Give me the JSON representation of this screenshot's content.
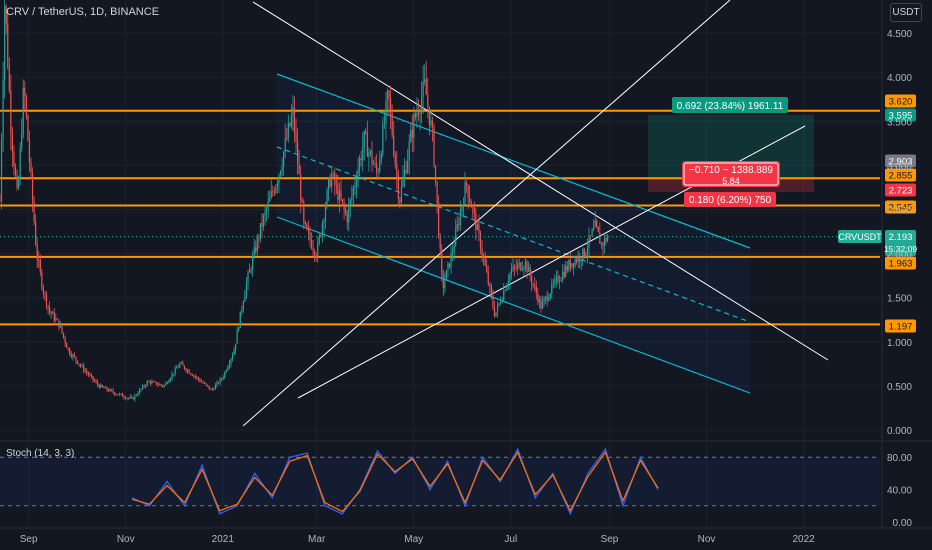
{
  "header": {
    "title": "CRV / TetherUS, 1D, BINANCE",
    "currency_button": "USDT"
  },
  "stoch_panel": {
    "title": "Stoch (14, 3, 3)",
    "y_ticks": [
      "80.00",
      "40.00",
      "0.00"
    ]
  },
  "price_axis": {
    "ticks": [
      "4.500",
      "4.000",
      "3.500",
      "3.000",
      "2.500",
      "2.000",
      "1.500",
      "1.000",
      "0.500",
      "0.000"
    ]
  },
  "time_axis": {
    "ticks": [
      "Sep",
      "Nov",
      "2021",
      "Mar",
      "May",
      "Jul",
      "Sep",
      "Nov",
      "2022"
    ]
  },
  "price_tags": [
    {
      "text": "3.620",
      "color": "#ff9800"
    },
    {
      "text": "3.595",
      "color": "#089981"
    },
    {
      "text": "2.903",
      "color": "#787b86"
    },
    {
      "text": "2.855",
      "color": "#ff9800"
    },
    {
      "text": "2.723",
      "color": "#f23645"
    },
    {
      "text": "2.545",
      "color": "#ff9800"
    },
    {
      "text": "1.963",
      "color": "#ff9800"
    },
    {
      "text": "1.197",
      "color": "#ff9800"
    }
  ],
  "current_price": {
    "symbol": "CRVUSDT",
    "price": "2.193",
    "countdown": "15:32:09",
    "color": "#22ab94"
  },
  "position_labels": {
    "target": "0.692 (23.84%) 1961.11",
    "tooltip_line1": "−0.710 ~ 1388.889",
    "tooltip_line2": "5.84",
    "stop": "0.180 (6.20%) 750"
  },
  "colors": {
    "background": "#131722",
    "bull": "#26a69a",
    "bear": "#ef5350",
    "horizontal_levels": "#ff9800",
    "channel": "#00bcd4",
    "trendlines": "#ffffff",
    "stoch_k": "#2962ff",
    "stoch_d": "#ff6d00"
  },
  "chart_data": [
    {
      "type": "candlestick",
      "title": "CRV / TetherUS, 1D, BINANCE",
      "ylim": [
        0,
        4.9
      ],
      "x_range": [
        "2020-08-14",
        "2022-02-18"
      ],
      "current_price": 2.193,
      "horizontal_levels": [
        3.62,
        2.855,
        2.545,
        1.963,
        1.197
      ],
      "close_path": [
        [
          "2020-08-14",
          2.6
        ],
        [
          "2020-08-17",
          4.9
        ],
        [
          "2020-08-21",
          3.4
        ],
        [
          "2020-08-25",
          2.6
        ],
        [
          "2020-08-29",
          3.9
        ],
        [
          "2020-09-03",
          2.7
        ],
        [
          "2020-09-06",
          2.0
        ],
        [
          "2020-09-10",
          1.6
        ],
        [
          "2020-09-14",
          1.35
        ],
        [
          "2020-09-20",
          1.2
        ],
        [
          "2020-09-26",
          0.9
        ],
        [
          "2020-10-05",
          0.7
        ],
        [
          "2020-10-15",
          0.5
        ],
        [
          "2020-10-25",
          0.42
        ],
        [
          "2020-11-05",
          0.35
        ],
        [
          "2020-11-15",
          0.55
        ],
        [
          "2020-11-25",
          0.5
        ],
        [
          "2020-12-05",
          0.75
        ],
        [
          "2020-12-15",
          0.6
        ],
        [
          "2020-12-25",
          0.45
        ],
        [
          "2021-01-01",
          0.6
        ],
        [
          "2021-01-08",
          0.9
        ],
        [
          "2021-01-15",
          1.6
        ],
        [
          "2021-01-25",
          2.3
        ],
        [
          "2021-02-05",
          2.9
        ],
        [
          "2021-02-14",
          3.6
        ],
        [
          "2021-02-21",
          2.3
        ],
        [
          "2021-03-01",
          2.0
        ],
        [
          "2021-03-10",
          2.9
        ],
        [
          "2021-03-20",
          2.4
        ],
        [
          "2021-03-31",
          3.3
        ],
        [
          "2021-04-08",
          2.9
        ],
        [
          "2021-04-15",
          3.8
        ],
        [
          "2021-04-22",
          2.6
        ],
        [
          "2021-05-01",
          3.5
        ],
        [
          "2021-05-08",
          3.9
        ],
        [
          "2021-05-13",
          3.3
        ],
        [
          "2021-05-19",
          1.6
        ],
        [
          "2021-05-25",
          2.0
        ],
        [
          "2021-06-03",
          2.8
        ],
        [
          "2021-06-12",
          2.1
        ],
        [
          "2021-06-21",
          1.3
        ],
        [
          "2021-07-01",
          1.8
        ],
        [
          "2021-07-10",
          1.9
        ],
        [
          "2021-07-20",
          1.4
        ],
        [
          "2021-07-30",
          1.7
        ],
        [
          "2021-08-08",
          1.9
        ],
        [
          "2021-08-16",
          2.0
        ],
        [
          "2021-08-23",
          2.3
        ],
        [
          "2021-08-27",
          2.1
        ],
        [
          "2021-08-31",
          2.193
        ]
      ]
    },
    {
      "type": "line",
      "title": "Stoch (14, 3, 3)",
      "ylim": [
        0,
        100
      ],
      "series": [
        {
          "name": "%K",
          "y": [
            30,
            20,
            50,
            20,
            70,
            10,
            20,
            60,
            30,
            80,
            85,
            20,
            10,
            40,
            88,
            60,
            80,
            40,
            75,
            20,
            80,
            50,
            90,
            30,
            60,
            10,
            60,
            90,
            20,
            80,
            40
          ]
        },
        {
          "name": "%D",
          "y": [
            28,
            22,
            45,
            24,
            65,
            14,
            22,
            55,
            33,
            75,
            82,
            24,
            13,
            38,
            84,
            62,
            78,
            44,
            72,
            24,
            76,
            52,
            86,
            34,
            58,
            14,
            56,
            86,
            26,
            76,
            42
          ]
        }
      ]
    }
  ]
}
